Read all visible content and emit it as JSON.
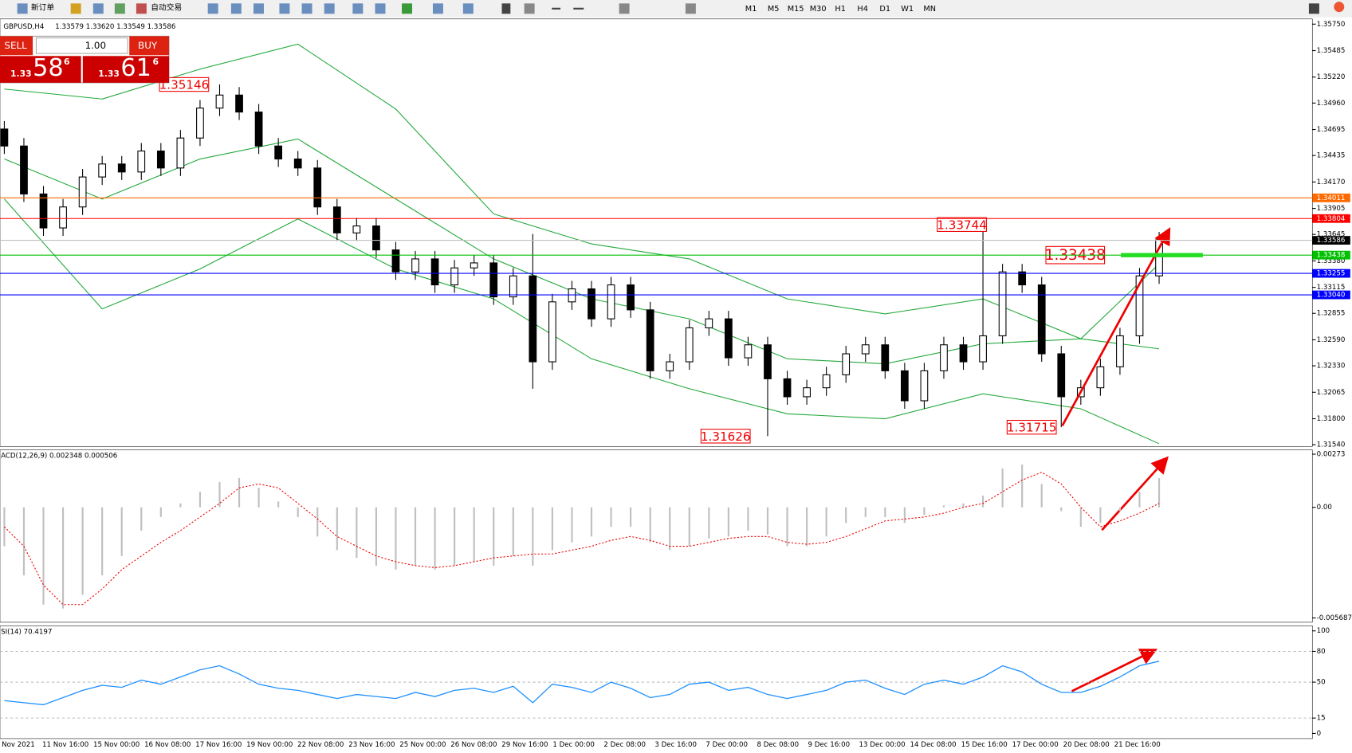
{
  "toolbar": {
    "new_order": "新订单",
    "auto_trading": "自动交易",
    "timeframes": [
      "M1",
      "M5",
      "M15",
      "M30",
      "H1",
      "H4",
      "D1",
      "W1",
      "MN"
    ]
  },
  "trade_panel": {
    "sell": "SELL",
    "buy": "BUY",
    "lots": "1.00",
    "bid_big": "1.33",
    "bid_pips": "58",
    "bid_frac": "6",
    "ask_big": "1.33",
    "ask_pips": "61",
    "ask_frac": "6"
  },
  "chart_data": [
    {
      "type": "candlestick",
      "title": "GBPUSD,H4",
      "subtitle": "1.33579 1.33620 1.33549 1.33586",
      "x_labels": [
        "Nov 2021",
        "11 Nov 16:00",
        "15 Nov 00:00",
        "16 Nov 08:00",
        "17 Nov 16:00",
        "19 Nov 00:00",
        "22 Nov 08:00",
        "23 Nov 16:00",
        "25 Nov 00:00",
        "26 Nov 08:00",
        "29 Nov 16:00",
        "1 Dec 00:00",
        "2 Dec 08:00",
        "3 Dec 16:00",
        "7 Dec 00:00",
        "8 Dec 08:00",
        "9 Dec 16:00",
        "13 Dec 00:00",
        "14 Dec 08:00",
        "15 Dec 16:00",
        "17 Dec 00:00",
        "20 Dec 08:00",
        "21 Dec 16:00"
      ],
      "open": [
        1.347,
        1.3453,
        1.3405,
        1.3371,
        1.3392,
        1.3422,
        1.3435,
        1.3427,
        1.3448,
        1.3431,
        1.3461,
        1.3491,
        1.3504,
        1.3487,
        1.3453,
        1.344,
        1.3431,
        1.3392,
        1.3366,
        1.3373,
        1.3349,
        1.3327,
        1.334,
        1.3314,
        1.3331,
        1.3336,
        1.3302,
        1.3323,
        1.3237,
        1.3297,
        1.331,
        1.328,
        1.3314,
        1.3289,
        1.3228,
        1.3237,
        1.3271,
        1.328,
        1.3241,
        1.3254,
        1.322,
        1.3202,
        1.3211,
        1.3224,
        1.3245,
        1.3254,
        1.3228,
        1.3198,
        1.3228,
        1.3254,
        1.3237,
        1.3263,
        1.3327,
        1.3314,
        1.3245,
        1.3202,
        1.3211,
        1.3232,
        1.3263,
        1.3323
      ],
      "high": [
        1.3478,
        1.3461,
        1.3413,
        1.34,
        1.343,
        1.3443,
        1.3443,
        1.3456,
        1.3456,
        1.3469,
        1.3499,
        1.35146,
        1.3512,
        1.3495,
        1.3461,
        1.3448,
        1.3439,
        1.34,
        1.3381,
        1.3381,
        1.3357,
        1.3348,
        1.3348,
        1.3339,
        1.3344,
        1.3344,
        1.3331,
        1.3365,
        1.3305,
        1.3318,
        1.3318,
        1.3322,
        1.3322,
        1.3297,
        1.3245,
        1.3279,
        1.3288,
        1.3288,
        1.3262,
        1.3262,
        1.3228,
        1.3219,
        1.3232,
        1.3253,
        1.3262,
        1.3262,
        1.3236,
        1.3236,
        1.3262,
        1.3262,
        1.33744,
        1.3335,
        1.3335,
        1.3322,
        1.3253,
        1.3219,
        1.324,
        1.3271,
        1.3331,
        1.3367
      ],
      "low": [
        1.3445,
        1.3397,
        1.3363,
        1.3363,
        1.3384,
        1.3414,
        1.3419,
        1.3419,
        1.3423,
        1.3423,
        1.3453,
        1.3483,
        1.3479,
        1.3445,
        1.3432,
        1.3423,
        1.3384,
        1.3358,
        1.3358,
        1.3341,
        1.3319,
        1.3319,
        1.3306,
        1.3306,
        1.3323,
        1.3294,
        1.3294,
        1.321,
        1.3229,
        1.3289,
        1.3272,
        1.3272,
        1.3281,
        1.322,
        1.322,
        1.3229,
        1.3263,
        1.3233,
        1.3233,
        1.31626,
        1.3194,
        1.3194,
        1.3203,
        1.3216,
        1.3237,
        1.322,
        1.319,
        1.319,
        1.322,
        1.3229,
        1.3229,
        1.3255,
        1.3306,
        1.3237,
        1.31715,
        1.3194,
        1.3203,
        1.3224,
        1.3255,
        1.3315
      ],
      "close": [
        1.3453,
        1.3405,
        1.3371,
        1.3392,
        1.3422,
        1.3435,
        1.3427,
        1.3448,
        1.3431,
        1.3461,
        1.3491,
        1.3504,
        1.3487,
        1.3453,
        1.344,
        1.3431,
        1.3392,
        1.3366,
        1.3373,
        1.3349,
        1.3327,
        1.334,
        1.3314,
        1.3331,
        1.3336,
        1.3302,
        1.3323,
        1.3237,
        1.3297,
        1.331,
        1.328,
        1.3314,
        1.3289,
        1.3228,
        1.3237,
        1.3271,
        1.328,
        1.3241,
        1.3254,
        1.322,
        1.3202,
        1.3211,
        1.3224,
        1.3245,
        1.3254,
        1.3228,
        1.3198,
        1.3228,
        1.3254,
        1.3237,
        1.3263,
        1.3327,
        1.3314,
        1.3245,
        1.3202,
        1.3211,
        1.3232,
        1.3263,
        1.3323,
        1.3359
      ],
      "bands": {
        "color": "#22a83a",
        "x": [
          0,
          5,
          10,
          15,
          20,
          25,
          30,
          35,
          40,
          45,
          50,
          55,
          59
        ],
        "upper": [
          1.351,
          1.35,
          1.353,
          1.3555,
          1.349,
          1.3385,
          1.3355,
          1.334,
          1.33,
          1.3285,
          1.33,
          1.326,
          1.3335
        ],
        "middle": [
          1.344,
          1.34,
          1.344,
          1.346,
          1.34,
          1.334,
          1.33,
          1.328,
          1.324,
          1.3235,
          1.3255,
          1.326,
          1.325
        ],
        "lower": [
          1.34,
          1.329,
          1.333,
          1.338,
          1.333,
          1.33,
          1.324,
          1.321,
          1.3185,
          1.318,
          1.3205,
          1.319,
          1.3155
        ]
      },
      "ylim": [
        1.3154,
        1.3575
      ],
      "yticks": [
        {
          "value": 1.3575,
          "label": "1.35750"
        },
        {
          "value": 1.35485,
          "label": "1.35485"
        },
        {
          "value": 1.3522,
          "label": "1.35220"
        },
        {
          "value": 1.3496,
          "label": "1.34960"
        },
        {
          "value": 1.34695,
          "label": "1.34695"
        },
        {
          "value": 1.34435,
          "label": "1.34435"
        },
        {
          "value": 1.3417,
          "label": "1.34170"
        },
        {
          "value": 1.33905,
          "label": "1.33905"
        },
        {
          "value": 1.33645,
          "label": "1.33645"
        },
        {
          "value": 1.3338,
          "label": "1.33380"
        },
        {
          "value": 1.33115,
          "label": "1.33115"
        },
        {
          "value": 1.32855,
          "label": "1.32855"
        },
        {
          "value": 1.3259,
          "label": "1.32590"
        },
        {
          "value": 1.3233,
          "label": "1.32330"
        },
        {
          "value": 1.32065,
          "label": "1.32065"
        },
        {
          "value": 1.318,
          "label": "1.31800"
        },
        {
          "value": 1.3154,
          "label": "1.31540"
        }
      ],
      "levels": [
        {
          "value": 1.34011,
          "label": "1.34011",
          "color": "#ff6a00",
          "label_color": "#ff6a00"
        },
        {
          "value": 1.33804,
          "label": "1.33804",
          "color": "#ff0000",
          "label_color": "#ff0000"
        },
        {
          "value": 1.33586,
          "label": "1.33586",
          "color": "#c0c0c0",
          "label_color": "#000000"
        },
        {
          "value": 1.33438,
          "label": "1.33438",
          "color": "#00c000",
          "label_color": "#00c000"
        },
        {
          "value": 1.33255,
          "label": "1.33255",
          "color": "#0000ff",
          "label_color": "#0000ff"
        },
        {
          "value": 1.3304,
          "label": "1.33040",
          "color": "#0000ff",
          "label_color": "#0000ff"
        }
      ],
      "annotations": [
        {
          "value": 1.35146,
          "label": "1.35146"
        },
        {
          "value": 1.33744,
          "label": "1.33744"
        },
        {
          "value": 1.31626,
          "label": "1.31626"
        },
        {
          "value": 1.31715,
          "label": "1.31715"
        },
        {
          "value": 1.33438,
          "label": "1.33438"
        }
      ]
    },
    {
      "type": "macd",
      "title": "ACD(12,26,9) 0.002348 0.000506",
      "histogram": [
        -0.002,
        -0.0035,
        -0.005,
        -0.0052,
        -0.0045,
        -0.0035,
        -0.0025,
        -0.0012,
        -0.0005,
        0.0002,
        0.0008,
        0.0013,
        0.0015,
        0.001,
        0.0003,
        -0.0005,
        -0.0015,
        -0.0022,
        -0.0026,
        -0.003,
        -0.0032,
        -0.003,
        -0.0032,
        -0.003,
        -0.0028,
        -0.003,
        -0.0025,
        -0.003,
        -0.0022,
        -0.0018,
        -0.0015,
        -0.001,
        -0.001,
        -0.0018,
        -0.0022,
        -0.002,
        -0.0016,
        -0.0015,
        -0.0012,
        -0.0014,
        -0.002,
        -0.002,
        -0.0015,
        -0.0008,
        -0.0005,
        -0.0005,
        -0.0008,
        -0.0004,
        0.0001,
        0.0002,
        0.0006,
        0.002,
        0.0022,
        0.0012,
        -0.0002,
        -0.001,
        -0.0008,
        -0.0002,
        0.0008,
        0.0015
      ],
      "signal": [
        -0.001,
        -0.002,
        -0.004,
        -0.005,
        -0.005,
        -0.0042,
        -0.0032,
        -0.0025,
        -0.0018,
        -0.0012,
        -0.0005,
        0.0002,
        0.001,
        0.0012,
        0.001,
        0.0002,
        -0.0006,
        -0.0015,
        -0.002,
        -0.0025,
        -0.0028,
        -0.003,
        -0.0031,
        -0.003,
        -0.0028,
        -0.0026,
        -0.0025,
        -0.0024,
        -0.0024,
        -0.0022,
        -0.002,
        -0.0017,
        -0.0015,
        -0.0017,
        -0.002,
        -0.002,
        -0.0018,
        -0.0016,
        -0.0015,
        -0.0015,
        -0.0018,
        -0.0019,
        -0.0018,
        -0.0015,
        -0.0011,
        -0.0007,
        -0.0006,
        -0.0005,
        -0.0003,
        0.0,
        0.0002,
        0.0008,
        0.0014,
        0.0018,
        0.0012,
        0.0,
        -0.001,
        -0.0007,
        -0.0003,
        0.0002
      ],
      "ylim": [
        -0.005687,
        0.00273
      ],
      "yticks": [
        0.00273,
        {
          "value": 0,
          "label": "0.00"
        },
        -0.005687
      ]
    },
    {
      "type": "rsi",
      "title": "SI(14) 70.4197",
      "values": [
        32,
        30,
        28,
        35,
        42,
        47,
        45,
        52,
        48,
        55,
        62,
        66,
        58,
        48,
        44,
        42,
        38,
        34,
        38,
        36,
        34,
        40,
        36,
        42,
        44,
        40,
        46,
        30,
        48,
        45,
        40,
        50,
        44,
        35,
        38,
        48,
        50,
        42,
        45,
        38,
        34,
        38,
        42,
        50,
        52,
        44,
        38,
        48,
        52,
        48,
        55,
        66,
        60,
        48,
        40,
        40,
        46,
        55,
        66,
        70.4
      ],
      "ylim": [
        0,
        100
      ],
      "yticks": [
        100,
        80,
        50,
        15,
        0
      ]
    }
  ]
}
